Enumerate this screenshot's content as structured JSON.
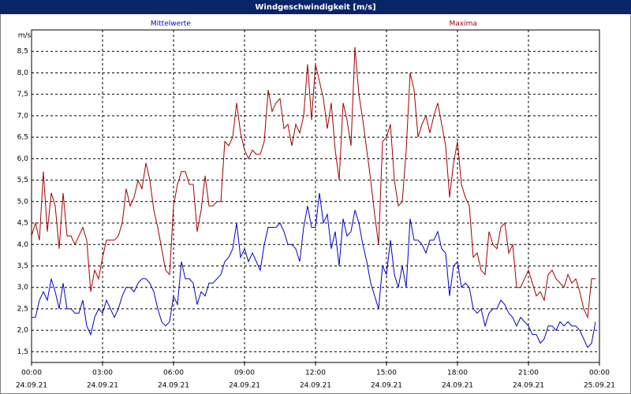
{
  "chart_data": {
    "type": "line",
    "title": "Windgeschwindigkeit [m/s]",
    "y_label": "m/s",
    "x": [
      0,
      10,
      20,
      30,
      40,
      50,
      60,
      70,
      80,
      90,
      100,
      110,
      120,
      130,
      140,
      150,
      160,
      170,
      180,
      190,
      200,
      210,
      220,
      230,
      240,
      250,
      260,
      270,
      280,
      290,
      300,
      310,
      320,
      330,
      340,
      350,
      360,
      370,
      380,
      390,
      400,
      410,
      420,
      430,
      440,
      450,
      460,
      470,
      480,
      490,
      500,
      510,
      520,
      530,
      540,
      550,
      560,
      570,
      580,
      590,
      600,
      610,
      620,
      630,
      640,
      650,
      660,
      670,
      680,
      690,
      700,
      710,
      720,
      730,
      740,
      750,
      760,
      770,
      780,
      790,
      800,
      810,
      820,
      830,
      840,
      850,
      860,
      870,
      880,
      890,
      900,
      910,
      920,
      930,
      940,
      950,
      960,
      970,
      980,
      990,
      1000,
      1010,
      1020,
      1030,
      1040,
      1050,
      1060,
      1070,
      1080,
      1090,
      1100,
      1110,
      1120,
      1130,
      1140,
      1150,
      1160,
      1170,
      1180,
      1190,
      1200,
      1210,
      1220,
      1230,
      1240,
      1250,
      1260,
      1270,
      1280,
      1290,
      1300,
      1310,
      1320,
      1330,
      1340,
      1350,
      1360,
      1370,
      1380,
      1390,
      1400,
      1410,
      1420,
      1430
    ],
    "series": [
      {
        "name": "Mittelwerte",
        "color": "#0000c8",
        "values": [
          2.3,
          2.3,
          2.7,
          2.9,
          2.7,
          3.2,
          2.9,
          2.5,
          3.1,
          2.5,
          2.5,
          2.4,
          2.4,
          2.7,
          2.1,
          1.9,
          2.3,
          2.5,
          2.4,
          2.7,
          2.5,
          2.3,
          2.5,
          2.8,
          3.0,
          3.0,
          2.9,
          3.1,
          3.2,
          3.2,
          3.1,
          2.9,
          2.5,
          2.2,
          2.1,
          2.2,
          2.8,
          2.6,
          3.6,
          3.2,
          3.2,
          3.1,
          2.6,
          2.9,
          2.8,
          3.1,
          3.1,
          3.2,
          3.3,
          3.6,
          3.7,
          3.9,
          4.5,
          3.7,
          3.9,
          3.6,
          3.8,
          3.6,
          3.4,
          4.0,
          4.4,
          4.4,
          4.4,
          4.5,
          4.3,
          4.0,
          4.0,
          3.9,
          3.6,
          4.4,
          4.9,
          4.4,
          4.4,
          5.2,
          4.5,
          4.7,
          3.9,
          4.3,
          3.5,
          4.6,
          4.2,
          4.3,
          4.8,
          4.5,
          4.0,
          3.6,
          3.1,
          2.8,
          2.5,
          3.5,
          3.3,
          4.1,
          3.3,
          3.0,
          3.5,
          3.0,
          4.6,
          4.1,
          4.1,
          4.0,
          3.8,
          4.1,
          4.1,
          4.3,
          3.9,
          3.8,
          2.8,
          3.5,
          3.6,
          3.0,
          3.1,
          3.0,
          2.5,
          2.4,
          2.5,
          2.1,
          2.4,
          2.5,
          2.5,
          2.7,
          2.6,
          2.4,
          2.3,
          2.1,
          2.3,
          2.2,
          2.1,
          1.9,
          1.9,
          1.7,
          1.8,
          2.1,
          2.1,
          2.0,
          2.2,
          2.1,
          2.2,
          2.1,
          2.1,
          2.0,
          1.8,
          1.6,
          1.7,
          2.2
        ]
      },
      {
        "name": "Maxima",
        "color": "#a00000",
        "values": [
          4.2,
          4.5,
          4.1,
          5.7,
          4.3,
          5.2,
          4.9,
          3.9,
          5.2,
          4.2,
          4.2,
          4.0,
          4.2,
          4.4,
          4.1,
          2.9,
          3.4,
          3.2,
          3.7,
          4.1,
          4.1,
          4.1,
          4.2,
          4.5,
          5.3,
          4.9,
          5.1,
          5.5,
          5.3,
          5.9,
          5.5,
          4.8,
          4.4,
          3.9,
          3.4,
          3.3,
          4.9,
          5.4,
          5.7,
          5.7,
          5.4,
          5.4,
          4.3,
          4.8,
          5.6,
          4.9,
          4.9,
          5.0,
          5.0,
          6.4,
          6.3,
          6.5,
          7.3,
          6.6,
          6.2,
          6.0,
          6.2,
          6.1,
          6.1,
          6.4,
          7.6,
          7.1,
          7.3,
          7.4,
          6.7,
          6.8,
          6.3,
          6.8,
          6.6,
          7.0,
          8.2,
          6.9,
          8.2,
          7.8,
          7.4,
          6.7,
          7.3,
          6.2,
          5.5,
          7.3,
          6.9,
          6.3,
          8.6,
          7.5,
          6.9,
          6.2,
          5.5,
          4.7,
          4.0,
          6.4,
          6.5,
          6.8,
          5.5,
          4.9,
          5.0,
          6.2,
          8.0,
          7.6,
          6.5,
          6.8,
          7.0,
          6.6,
          7.0,
          7.3,
          6.8,
          6.3,
          5.1,
          5.9,
          6.4,
          5.4,
          5.1,
          4.9,
          3.7,
          3.8,
          3.4,
          3.3,
          4.3,
          4.0,
          3.9,
          4.4,
          4.5,
          3.8,
          4.0,
          3.0,
          3.0,
          3.2,
          3.4,
          3.1,
          2.8,
          2.9,
          2.7,
          3.3,
          3.4,
          3.2,
          3.1,
          3.0,
          3.3,
          3.1,
          3.2,
          2.9,
          2.5,
          2.3,
          3.2,
          3.2
        ]
      }
    ],
    "xlim": [
      0,
      1440
    ],
    "xticks": [
      {
        "value": 0,
        "label": "00:00"
      },
      {
        "value": 180,
        "label": "03:00"
      },
      {
        "value": 360,
        "label": "06:00"
      },
      {
        "value": 540,
        "label": "09:00"
      },
      {
        "value": 720,
        "label": "12:00"
      },
      {
        "value": 900,
        "label": "15:00"
      },
      {
        "value": 1080,
        "label": "18:00"
      },
      {
        "value": 1260,
        "label": "21:00"
      },
      {
        "value": 1440,
        "label": "00:00"
      }
    ],
    "xtick_dates": [
      "24.09.21",
      "24.09.21",
      "24.09.21",
      "24.09.21",
      "24.09.21",
      "24.09.21",
      "24.09.21",
      "24.09.21",
      "25.09.21"
    ],
    "ylim": [
      1.25,
      9.0
    ],
    "yticks": [
      {
        "value": 1.5,
        "label": "1,5"
      },
      {
        "value": 2.0,
        "label": "2,0"
      },
      {
        "value": 2.5,
        "label": "2,5"
      },
      {
        "value": 3.0,
        "label": "3,0"
      },
      {
        "value": 3.5,
        "label": "3,5"
      },
      {
        "value": 4.0,
        "label": "4,0"
      },
      {
        "value": 4.5,
        "label": "4,5"
      },
      {
        "value": 5.0,
        "label": "5,0"
      },
      {
        "value": 5.5,
        "label": "5,5"
      },
      {
        "value": 6.0,
        "label": "6,0"
      },
      {
        "value": 6.5,
        "label": "6,5"
      },
      {
        "value": 7.0,
        "label": "7,0"
      },
      {
        "value": 7.5,
        "label": "7,5"
      },
      {
        "value": 8.0,
        "label": "8,0"
      },
      {
        "value": 8.5,
        "label": "8,5"
      }
    ],
    "grid": true
  }
}
